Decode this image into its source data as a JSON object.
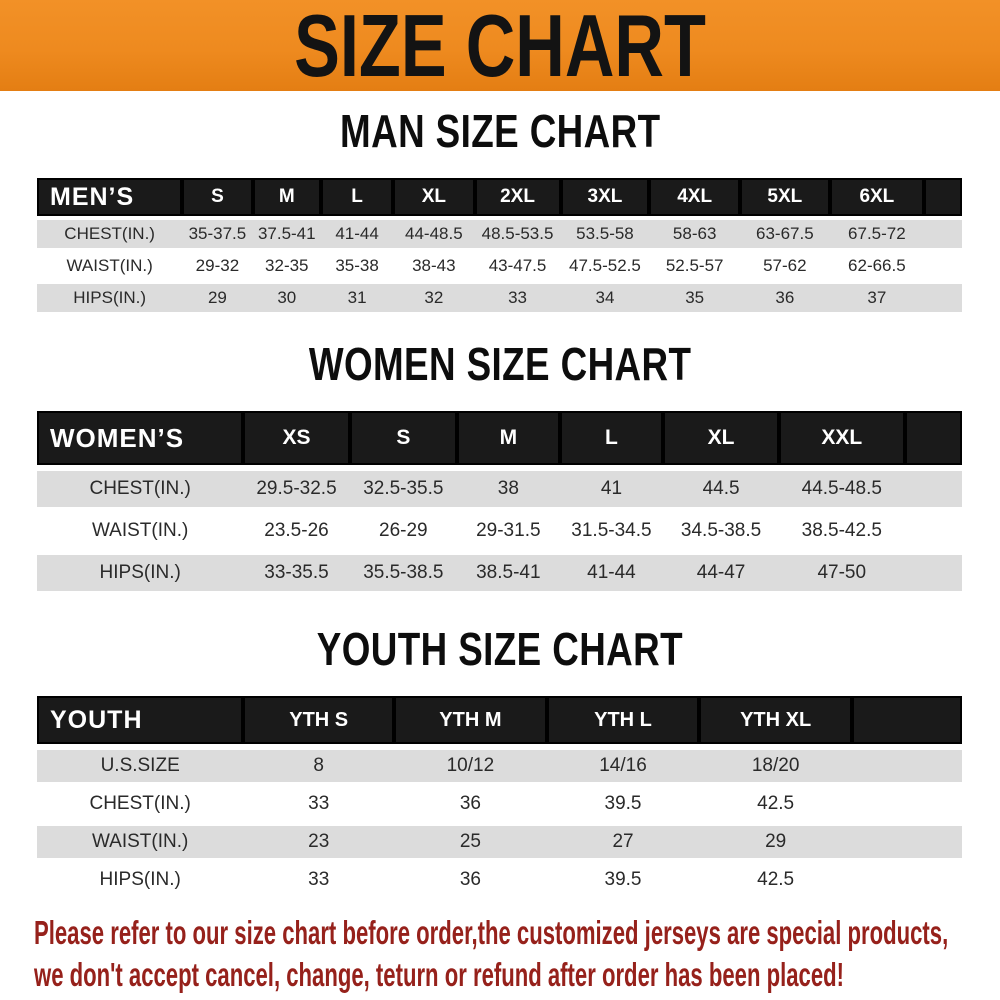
{
  "banner": {
    "title": "SIZE CHART"
  },
  "colors": {
    "banner_orange": "#ee8a1f",
    "header_bar_black": "#1a1a1a",
    "row_gray": "#dcdcdc",
    "row_white": "#ffffff",
    "disclaimer_red": "#96211b"
  },
  "sections": [
    {
      "title": "MAN SIZE CHART",
      "header_label": "MEN’S",
      "columns": [
        "S",
        "M",
        "L",
        "XL",
        "2XL",
        "3XL",
        "4XL",
        "5XL",
        "6XL"
      ],
      "rows": [
        {
          "label": "CHEST(IN.)",
          "values": [
            "35-37.5",
            "37.5-41",
            "41-44",
            "44-48.5",
            "48.5-53.5",
            "53.5-58",
            "58-63",
            "63-67.5",
            "67.5-72"
          ]
        },
        {
          "label": "WAIST(IN.)",
          "values": [
            "29-32",
            "32-35",
            "35-38",
            "38-43",
            "43-47.5",
            "47.5-52.5",
            "52.5-57",
            "57-62",
            "62-66.5"
          ]
        },
        {
          "label": "HIPS(IN.)",
          "values": [
            "29",
            "30",
            "31",
            "32",
            "33",
            "34",
            "35",
            "36",
            "37"
          ]
        }
      ]
    },
    {
      "title": "WOMEN SIZE CHART",
      "header_label": "WOMEN’S",
      "columns": [
        "XS",
        "S",
        "M",
        "L",
        "XL",
        "XXL"
      ],
      "rows": [
        {
          "label": "CHEST(IN.)",
          "values": [
            "29.5-32.5",
            "32.5-35.5",
            "38",
            "41",
            "44.5",
            "44.5-48.5"
          ]
        },
        {
          "label": "WAIST(IN.)",
          "values": [
            "23.5-26",
            "26-29",
            "29-31.5",
            "31.5-34.5",
            "34.5-38.5",
            "38.5-42.5"
          ]
        },
        {
          "label": "HIPS(IN.)",
          "values": [
            "33-35.5",
            "35.5-38.5",
            "38.5-41",
            "41-44",
            "44-47",
            "47-50"
          ]
        }
      ]
    },
    {
      "title": "YOUTH SIZE CHART",
      "header_label": "YOUTH",
      "columns": [
        "YTH S",
        "YTH M",
        "YTH L",
        "YTH XL"
      ],
      "rows": [
        {
          "label": "U.S.SIZE",
          "values": [
            "8",
            "10/12",
            "14/16",
            "18/20"
          ]
        },
        {
          "label": "CHEST(IN.)",
          "values": [
            "33",
            "36",
            "39.5",
            "42.5"
          ]
        },
        {
          "label": "WAIST(IN.)",
          "values": [
            "23",
            "25",
            "27",
            "29"
          ]
        },
        {
          "label": "HIPS(IN.)",
          "values": [
            "33",
            "36",
            "39.5",
            "42.5"
          ]
        }
      ]
    }
  ],
  "disclaimer": {
    "lines": [
      "Please refer to our size chart before order,the customized jerseys are special products,",
      "we don't accept cancel, change, teturn or refund after order has been placed!"
    ]
  }
}
